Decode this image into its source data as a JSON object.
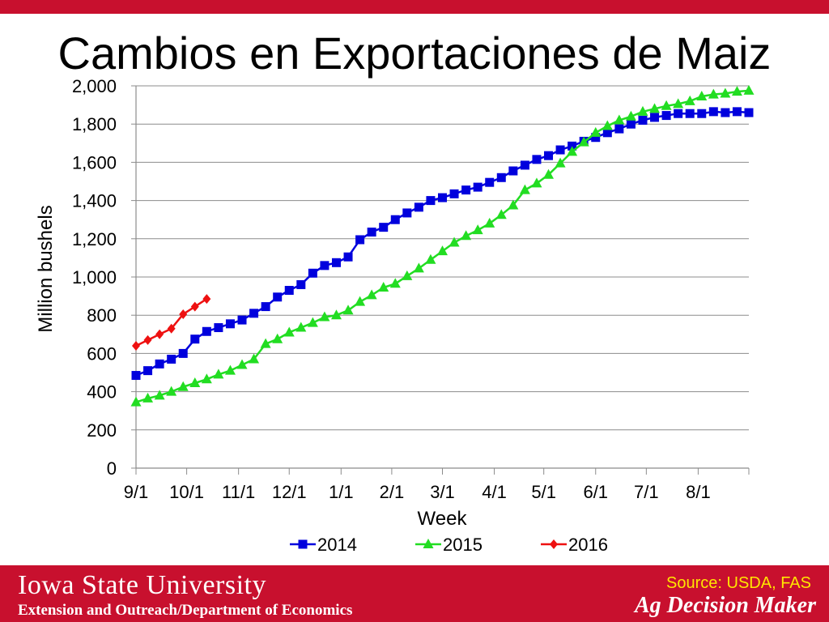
{
  "slide": {
    "title": "Cambios en Exportaciones de Maiz"
  },
  "footer": {
    "university": "Iowa State University",
    "department": "Extension and Outreach/Department of Economics",
    "source": "Source: USDA, FAS",
    "brand": "Ag Decision Maker"
  },
  "colors": {
    "brand_red": "#c8102e",
    "source_yellow": "#ffe600",
    "series_2014": "#0000dd",
    "series_2015": "#22dd22",
    "series_2016": "#ee1111"
  },
  "chart_data": {
    "type": "line",
    "xlabel": "Week",
    "ylabel": "Million bushels",
    "ylim": [
      0,
      2000
    ],
    "yticks": [
      0,
      200,
      400,
      600,
      800,
      1000,
      1200,
      1400,
      1600,
      1800,
      2000
    ],
    "ytick_labels": [
      "0",
      "200",
      "400",
      "600",
      "800",
      "1,000",
      "1,200",
      "1,400",
      "1,600",
      "1,800",
      "2,000"
    ],
    "xtick_labels": [
      "9/1",
      "10/1",
      "11/1",
      "12/1",
      "1/1",
      "2/1",
      "3/1",
      "4/1",
      "5/1",
      "6/1",
      "7/1",
      "8/1"
    ],
    "xtick_weeks": [
      0,
      4.3,
      8.7,
      13,
      17.4,
      21.7,
      26,
      30.4,
      34.6,
      39,
      43.3,
      47.7
    ],
    "xlim_weeks": [
      0,
      52
    ],
    "grid": "horizontal",
    "legend_position": "bottom",
    "series": [
      {
        "name": "2014",
        "color": "#0000dd",
        "marker": "square",
        "values": [
          485,
          510,
          545,
          570,
          600,
          675,
          715,
          735,
          755,
          775,
          810,
          845,
          895,
          930,
          960,
          1020,
          1060,
          1075,
          1105,
          1195,
          1235,
          1260,
          1300,
          1335,
          1365,
          1400,
          1415,
          1435,
          1455,
          1470,
          1495,
          1520,
          1555,
          1585,
          1615,
          1635,
          1665,
          1685,
          1710,
          1730,
          1755,
          1775,
          1800,
          1820,
          1835,
          1845,
          1855,
          1855,
          1855,
          1865,
          1860,
          1865,
          1860
        ]
      },
      {
        "name": "2015",
        "color": "#22dd22",
        "marker": "triangle",
        "values": [
          345,
          365,
          380,
          400,
          425,
          445,
          465,
          490,
          510,
          540,
          570,
          650,
          675,
          710,
          735,
          760,
          790,
          800,
          825,
          870,
          905,
          945,
          965,
          1005,
          1045,
          1090,
          1135,
          1180,
          1215,
          1245,
          1280,
          1325,
          1375,
          1455,
          1490,
          1535,
          1595,
          1655,
          1705,
          1755,
          1790,
          1820,
          1840,
          1865,
          1880,
          1895,
          1905,
          1920,
          1945,
          1955,
          1960,
          1970,
          1975
        ]
      },
      {
        "name": "2016",
        "color": "#ee1111",
        "marker": "diamond",
        "values": [
          640,
          670,
          700,
          730,
          805,
          845,
          885
        ]
      }
    ]
  }
}
